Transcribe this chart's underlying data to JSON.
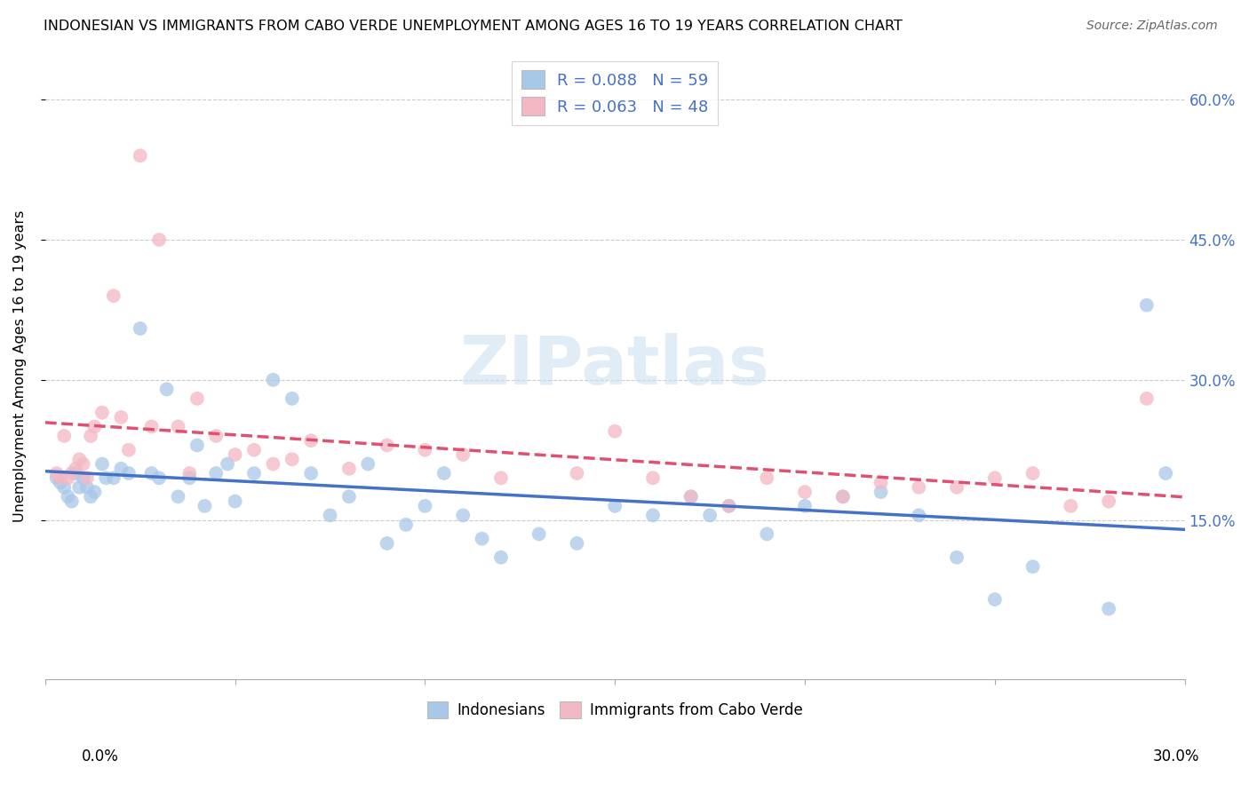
{
  "title": "INDONESIAN VS IMMIGRANTS FROM CABO VERDE UNEMPLOYMENT AMONG AGES 16 TO 19 YEARS CORRELATION CHART",
  "source": "Source: ZipAtlas.com",
  "ylabel": "Unemployment Among Ages 16 to 19 years",
  "color_blue": "#a8c8e8",
  "color_pink": "#f4b8c4",
  "trendline_blue": "#4472c4",
  "trendline_pink": "#e05070",
  "watermark": "ZIPatlas",
  "xlim": [
    0.0,
    0.3
  ],
  "ylim": [
    -0.02,
    0.65
  ],
  "yticks": [
    0.0,
    0.15,
    0.3,
    0.45,
    0.6
  ],
  "ytick_labels_right": [
    "",
    "15.0%",
    "30.0%",
    "45.0%",
    "60.0%"
  ],
  "xtick_label_left": "0.0%",
  "xtick_label_right": "30.0%",
  "legend1_label": "R = 0.088   N = 59",
  "legend2_label": "R = 0.063   N = 48",
  "bottom_legend1": "Indonesians",
  "bottom_legend2": "Immigrants from Cabo Verde",
  "indo_x": [
    0.003,
    0.004,
    0.005,
    0.006,
    0.007,
    0.008,
    0.009,
    0.01,
    0.011,
    0.012,
    0.013,
    0.015,
    0.016,
    0.018,
    0.02,
    0.022,
    0.025,
    0.028,
    0.03,
    0.032,
    0.035,
    0.038,
    0.04,
    0.042,
    0.045,
    0.048,
    0.05,
    0.055,
    0.06,
    0.065,
    0.07,
    0.075,
    0.08,
    0.085,
    0.09,
    0.095,
    0.1,
    0.105,
    0.11,
    0.115,
    0.12,
    0.13,
    0.14,
    0.15,
    0.16,
    0.17,
    0.175,
    0.18,
    0.19,
    0.2,
    0.21,
    0.22,
    0.23,
    0.24,
    0.25,
    0.26,
    0.28,
    0.29,
    0.295
  ],
  "indo_y": [
    0.195,
    0.19,
    0.185,
    0.175,
    0.17,
    0.2,
    0.185,
    0.195,
    0.185,
    0.175,
    0.18,
    0.21,
    0.195,
    0.195,
    0.205,
    0.2,
    0.355,
    0.2,
    0.195,
    0.29,
    0.175,
    0.195,
    0.23,
    0.165,
    0.2,
    0.21,
    0.17,
    0.2,
    0.3,
    0.28,
    0.2,
    0.155,
    0.175,
    0.21,
    0.125,
    0.145,
    0.165,
    0.2,
    0.155,
    0.13,
    0.11,
    0.135,
    0.125,
    0.165,
    0.155,
    0.175,
    0.155,
    0.165,
    0.135,
    0.165,
    0.175,
    0.18,
    0.155,
    0.11,
    0.065,
    0.1,
    0.055,
    0.38,
    0.2
  ],
  "cabo_x": [
    0.003,
    0.004,
    0.005,
    0.006,
    0.007,
    0.008,
    0.009,
    0.01,
    0.011,
    0.012,
    0.013,
    0.015,
    0.018,
    0.02,
    0.022,
    0.025,
    0.028,
    0.03,
    0.035,
    0.038,
    0.04,
    0.045,
    0.05,
    0.055,
    0.06,
    0.065,
    0.07,
    0.08,
    0.09,
    0.1,
    0.11,
    0.12,
    0.14,
    0.15,
    0.16,
    0.17,
    0.18,
    0.19,
    0.2,
    0.21,
    0.22,
    0.23,
    0.24,
    0.25,
    0.26,
    0.27,
    0.28,
    0.29
  ],
  "cabo_y": [
    0.2,
    0.195,
    0.24,
    0.195,
    0.2,
    0.205,
    0.215,
    0.21,
    0.195,
    0.24,
    0.25,
    0.265,
    0.39,
    0.26,
    0.225,
    0.54,
    0.25,
    0.45,
    0.25,
    0.2,
    0.28,
    0.24,
    0.22,
    0.225,
    0.21,
    0.215,
    0.235,
    0.205,
    0.23,
    0.225,
    0.22,
    0.195,
    0.2,
    0.245,
    0.195,
    0.175,
    0.165,
    0.195,
    0.18,
    0.175,
    0.19,
    0.185,
    0.185,
    0.195,
    0.2,
    0.165,
    0.17,
    0.28
  ]
}
